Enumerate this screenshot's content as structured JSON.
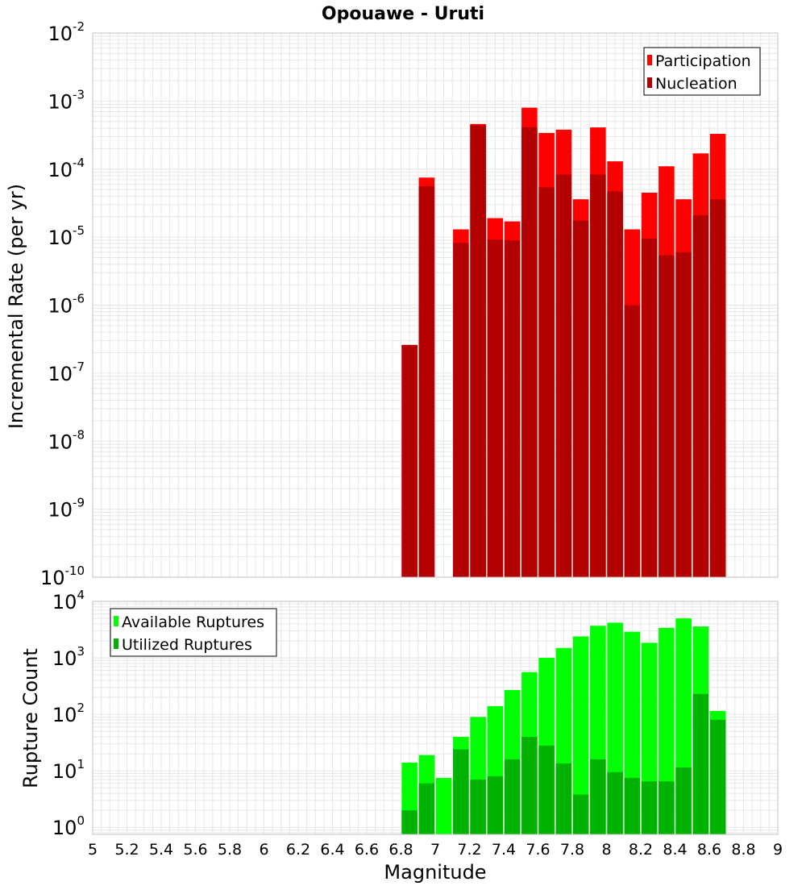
{
  "title": "Opouawe - Uruti",
  "colors": {
    "participation": "#ff0000",
    "nucleation": "#b30000",
    "available": "#00ff00",
    "utilized": "#00b300",
    "grid": "#e6e6e6",
    "frame": "#bfbfbf"
  },
  "chart_data": [
    {
      "type": "bar",
      "title": "Opouawe - Uruti",
      "ylabel": "Incremental Rate (per yr)",
      "xlabel": "",
      "yscale": "log",
      "xlim": [
        5,
        9
      ],
      "ylim": [
        1e-10,
        0.01
      ],
      "y_ticks": [
        {
          "base": "10",
          "exp": "-10"
        },
        {
          "base": "10",
          "exp": "-9"
        },
        {
          "base": "10",
          "exp": "-8"
        },
        {
          "base": "10",
          "exp": "-7"
        },
        {
          "base": "10",
          "exp": "-6"
        },
        {
          "base": "10",
          "exp": "-5"
        },
        {
          "base": "10",
          "exp": "-4"
        },
        {
          "base": "10",
          "exp": "-3"
        },
        {
          "base": "10",
          "exp": "-2"
        }
      ],
      "grid": true,
      "legend_position": "top-right",
      "x": [
        6.85,
        6.95,
        7.05,
        7.15,
        7.25,
        7.35,
        7.45,
        7.55,
        7.65,
        7.75,
        7.85,
        7.95,
        8.05,
        8.15,
        8.25,
        8.35,
        8.45,
        8.55,
        8.65
      ],
      "series": [
        {
          "name": "Participation",
          "values": [
            2.6e-07,
            7.5e-05,
            0,
            1.3e-05,
            0.00046,
            1.9e-05,
            1.7e-05,
            0.0008,
            0.00034,
            0.00038,
            3.6e-05,
            0.00041,
            0.00013,
            1.3e-05,
            4.5e-05,
            0.00011,
            3.6e-05,
            0.00017,
            0.00033
          ]
        },
        {
          "name": "Nucleation",
          "values": [
            2.6e-07,
            5.6e-05,
            0,
            8.2e-06,
            0.00044,
            9.2e-06,
            9e-06,
            0.00041,
            5.4e-05,
            8.3e-05,
            1.75e-05,
            8.3e-05,
            4.7e-05,
            1e-06,
            9.5e-06,
            5.4e-06,
            6e-06,
            2.1e-05,
            3.6e-05
          ]
        }
      ]
    },
    {
      "type": "bar",
      "title": "",
      "ylabel": "Rupture Count",
      "xlabel": "Magnitude",
      "yscale": "log",
      "xlim": [
        5,
        9
      ],
      "ylim": [
        0.75,
        10000
      ],
      "x_ticks": [
        "5",
        "5.2",
        "5.4",
        "5.6",
        "5.8",
        "6",
        "6.2",
        "6.4",
        "6.6",
        "6.8",
        "7",
        "7.2",
        "7.4",
        "7.6",
        "7.8",
        "8",
        "8.2",
        "8.4",
        "8.6",
        "8.8",
        "9"
      ],
      "y_ticks": [
        {
          "base": "10",
          "exp": "0"
        },
        {
          "base": "10",
          "exp": "1"
        },
        {
          "base": "10",
          "exp": "2"
        },
        {
          "base": "10",
          "exp": "3"
        },
        {
          "base": "10",
          "exp": "4"
        }
      ],
      "grid": true,
      "legend_position": "top-left",
      "x": [
        6.85,
        6.95,
        7.05,
        7.15,
        7.25,
        7.35,
        7.45,
        7.55,
        7.65,
        7.75,
        7.85,
        7.95,
        8.05,
        8.15,
        8.25,
        8.35,
        8.45,
        8.55,
        8.65
      ],
      "series": [
        {
          "name": "Available Ruptures",
          "values": [
            14,
            19,
            7.5,
            40,
            90,
            140,
            270,
            560,
            1000,
            1500,
            2400,
            3700,
            4200,
            2900,
            1850,
            3400,
            5000,
            3600,
            115
          ]
        },
        {
          "name": "Utilized Ruptures",
          "values": [
            2,
            6,
            0,
            24,
            7,
            8,
            16,
            40,
            28,
            13.5,
            3.8,
            16,
            9.5,
            7.5,
            6.5,
            6.5,
            11.5,
            230,
            80
          ]
        }
      ]
    }
  ]
}
